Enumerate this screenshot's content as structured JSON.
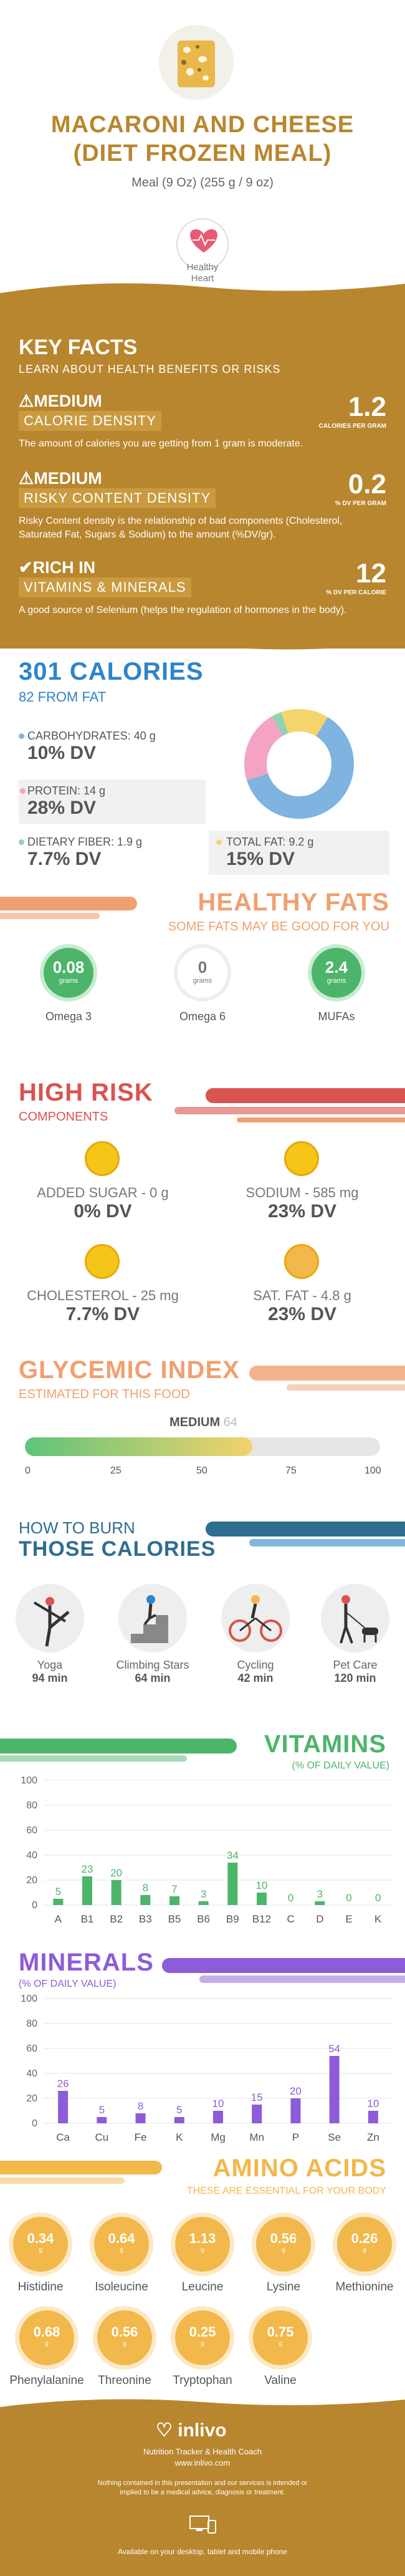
{
  "header": {
    "title_line1": "MACARONI AND CHEESE",
    "title_line2": "(DIET FROZEN MEAL)",
    "serving": "Meal (9 Oz) (255 g / 9 oz)",
    "badge": "Healthy\nHeart"
  },
  "key_facts": {
    "title": "KEY FACTS",
    "subtitle": "LEARN ABOUT HEALTH BENEFITS OR RISKS",
    "items": [
      {
        "level": "MEDIUM",
        "label": "CALORIE DENSITY",
        "value": "1.2",
        "unit": "CALORIES PER GRAM",
        "desc": "The amount of calories you are getting from 1 gram is moderate."
      },
      {
        "level": "MEDIUM",
        "label": "RISKY CONTENT DENSITY",
        "value": "0.2",
        "unit": "% DV PER GRAM",
        "desc": "Risky Content density is the relationship of bad components (Cholesterol, Saturated Fat, Sugars & Sodium) to the amount (%DV/gr)."
      },
      {
        "level": "RICH  IN",
        "label": "VITAMINS & MINERALS",
        "value": "12",
        "unit": "% DV PER CALORIE",
        "desc": "A good source of Selenium (helps the regulation of hormones in the body)."
      }
    ]
  },
  "calories": {
    "title": "301 CALORIES",
    "subtitle": "82 FROM FAT",
    "nutrients": [
      {
        "name": "CARBOHYDRATES: 40 g",
        "dv": "10% DV",
        "color": "#7fb3e0"
      },
      {
        "name": "PROTEIN: 14 g",
        "dv": "28% DV",
        "color": "#f4a3c4"
      },
      {
        "name": "DIETARY FIBER: 1.9 g",
        "dv": "7.7% DV",
        "color": "#8fd3b0"
      },
      {
        "name": "TOTAL FAT: 9.2 g",
        "dv": "15% DV",
        "color": "#f5d56b"
      }
    ],
    "donut": [
      {
        "name": "Carbohydrates",
        "value": 40,
        "color": "#7fb3e0"
      },
      {
        "name": "Protein",
        "value": 14,
        "color": "#f4a3c4"
      },
      {
        "name": "Fiber",
        "value": 1.9,
        "color": "#8fd3b0"
      },
      {
        "name": "Fat",
        "value": 9.2,
        "color": "#f5d56b"
      }
    ]
  },
  "healthy_fats": {
    "title": "HEALTHY FATS",
    "subtitle": "SOME FATS MAY BE GOOD FOR YOU",
    "items": [
      {
        "value": "0.08",
        "unit": "grams",
        "name": "Omega 3",
        "color": "#4cb56a"
      },
      {
        "value": "0",
        "unit": "grams",
        "name": "Omega 6",
        "color": "#ffffff"
      },
      {
        "value": "2.4",
        "unit": "grams",
        "name": "MUFAs",
        "color": "#4cb56a"
      }
    ]
  },
  "high_risk": {
    "title": "HIGH RISK",
    "subtitle": "COMPONENTS",
    "items": [
      {
        "name": "ADDED SUGAR - 0 g",
        "dv": "0% DV"
      },
      {
        "name": "SODIUM - 585 mg",
        "dv": "23% DV"
      },
      {
        "name": "CHOLESTEROL - 25 mg",
        "dv": "7.7% DV"
      },
      {
        "name": "SAT. FAT - 4.8 g",
        "dv": "23% DV"
      }
    ]
  },
  "glycemic": {
    "title": "GLYCEMIC INDEX",
    "subtitle": "ESTIMATED FOR THIS FOOD",
    "level": "MEDIUM",
    "value": "64",
    "gi_value": 64,
    "ticks": [
      "0",
      "25",
      "50",
      "75",
      "100"
    ]
  },
  "burn": {
    "title1": "HOW TO BURN",
    "title2": "THOSE CALORIES",
    "activities": [
      {
        "name": "Yoga",
        "minutes": "94 min",
        "icon": "yoga-icon"
      },
      {
        "name": "Climbing Stars",
        "minutes": "64 min",
        "icon": "stairs-icon"
      },
      {
        "name": "Cycling",
        "minutes": "42 min",
        "icon": "cycling-icon"
      },
      {
        "name": "Pet Care",
        "minutes": "120 min",
        "icon": "dog-walking-icon"
      }
    ]
  },
  "vitamins": {
    "title": "VITAMINS",
    "subtitle": "(% OF DAILY VALUE)"
  },
  "minerals": {
    "title": "MINERALS",
    "subtitle": "(% OF DAILY VALUE)"
  },
  "chart_data": [
    {
      "type": "bar",
      "categories": [
        "A",
        "B1",
        "B2",
        "B3",
        "B5",
        "B6",
        "B9",
        "B12",
        "C",
        "D",
        "E",
        "K"
      ],
      "values": [
        5,
        23,
        20,
        8,
        7,
        3,
        34,
        10,
        0,
        3,
        0,
        0
      ],
      "ylim": [
        0,
        100
      ],
      "yticks": [
        "0",
        "20",
        "40",
        "60",
        "80",
        "100"
      ],
      "color": "#4cb56a"
    },
    {
      "type": "bar",
      "categories": [
        "Ca",
        "Cu",
        "Fe",
        "K",
        "Mg",
        "Mn",
        "P",
        "Se",
        "Zn"
      ],
      "values": [
        26,
        5,
        8,
        5,
        10,
        15,
        20,
        54,
        10
      ],
      "ylim": [
        0,
        100
      ],
      "yticks": [
        "0",
        "20",
        "40",
        "60",
        "80",
        "100"
      ],
      "color": "#8c5cd9"
    }
  ],
  "amino": {
    "title": "AMINO ACIDS",
    "subtitle": "THESE ARE ESSENTIAL FOR YOUR BODY",
    "unit": "g",
    "items": [
      {
        "value": "0.34",
        "name": "Histidine"
      },
      {
        "value": "0.64",
        "name": "Isoleucine"
      },
      {
        "value": "1.13",
        "name": "Leucine"
      },
      {
        "value": "0.56",
        "name": "Lysine"
      },
      {
        "value": "0.26",
        "name": "Methionine"
      },
      {
        "value": "0.68",
        "name": "Phenylalanine"
      },
      {
        "value": "0.56",
        "name": "Threonine"
      },
      {
        "value": "0.25",
        "name": "Tryptophan"
      },
      {
        "value": "0.75",
        "name": "Valine"
      }
    ]
  },
  "footer": {
    "brand": "inlivo",
    "tagline": "Nutrition Tracker & Health Coach",
    "url": "www.inlivo.com",
    "disclaimer": "Nothing contained in this presentation and our services is intended or implied to be a medical advice, diagnosis or treatment.",
    "devices": "Available on your desktop, tablet and mobile phone"
  },
  "colors": {
    "gold": "#b8862e",
    "blue": "#2e84c8",
    "orange": "#f0a070",
    "red": "#d9534f",
    "green": "#4cb56a",
    "purple": "#8c5cd9",
    "amber": "#f2b84b"
  }
}
